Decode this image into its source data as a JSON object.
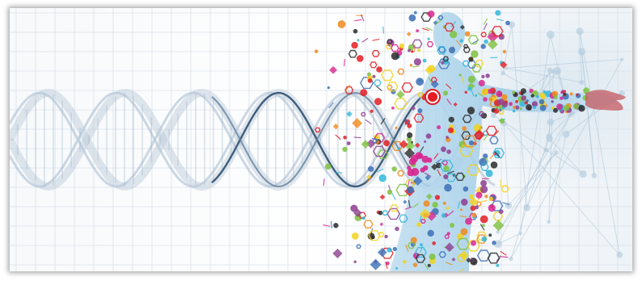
{
  "image": {
    "subject": "dna-helix-human-figure-molecules",
    "palette": {
      "grid": "#cfd8e3",
      "helix_main": "#2f4f6f",
      "helix_faint": "#b7c8d8",
      "body_blue": "#a9cfe8",
      "accent_red": "#e21d23",
      "accent_green": "#7ec13f",
      "accent_purple": "#8e3d8f",
      "accent_yellow": "#f2d21c",
      "accent_cyan": "#33b7d9",
      "accent_magenta": "#d7268f",
      "accent_orange": "#f08a1c",
      "accent_dark": "#2a2a2a"
    }
  }
}
